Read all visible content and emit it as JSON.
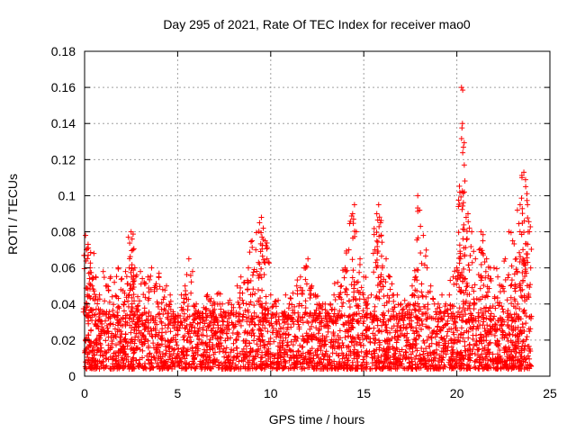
{
  "chart_data": {
    "type": "scatter",
    "title": "Day 295 of 2021, Rate Of TEC Index for receiver mao0",
    "xlabel": "GPS time / hours",
    "ylabel": "ROTI / TECUs",
    "xlim": [
      0,
      25
    ],
    "ylim": [
      0,
      0.18
    ],
    "xticks": [
      0,
      5,
      10,
      15,
      20,
      25
    ],
    "xtick_labels": [
      "0",
      "5",
      "10",
      "15",
      "20",
      "25"
    ],
    "yticks": [
      0,
      0.02,
      0.04,
      0.06,
      0.08,
      0.1,
      0.12,
      0.14,
      0.16,
      0.18
    ],
    "ytick_labels": [
      "0",
      "0.02",
      "0.04",
      "0.06",
      "0.08",
      "0.1",
      "0.12",
      "0.14",
      "0.16",
      "0.18"
    ],
    "grid": true,
    "marker": "plus",
    "color": "#ff0000",
    "series": [
      {
        "name": "ROTI",
        "x": [
          0.05,
          0.1,
          0.15,
          0.2,
          0.3,
          0.4,
          0.5,
          0.6,
          0.8,
          1.0,
          1.2,
          1.4,
          1.6,
          1.8,
          2.0,
          2.2,
          2.4,
          2.5,
          2.55,
          2.6,
          2.7,
          2.8,
          3.0,
          3.2,
          3.4,
          3.6,
          3.8,
          4.0,
          4.2,
          4.4,
          4.6,
          4.8,
          5.0,
          5.2,
          5.4,
          5.6,
          5.8,
          6.0,
          6.2,
          6.4,
          6.6,
          6.8,
          7.0,
          7.2,
          7.4,
          7.6,
          7.8,
          8.0,
          8.2,
          8.4,
          8.6,
          8.8,
          9.0,
          9.2,
          9.4,
          9.5,
          9.6,
          9.7,
          9.8,
          10.0,
          10.2,
          10.4,
          10.6,
          10.8,
          11.0,
          11.2,
          11.4,
          11.6,
          11.8,
          12.0,
          12.2,
          12.4,
          12.6,
          12.8,
          13.0,
          13.2,
          13.4,
          13.6,
          13.8,
          14.0,
          14.2,
          14.4,
          14.5,
          14.6,
          14.8,
          15.0,
          15.2,
          15.4,
          15.6,
          15.7,
          15.8,
          15.9,
          16.0,
          16.2,
          16.4,
          16.6,
          16.8,
          17.0,
          17.2,
          17.4,
          17.6,
          17.8,
          17.9,
          18.0,
          18.2,
          18.4,
          18.6,
          18.8,
          19.0,
          19.2,
          19.4,
          19.6,
          19.8,
          20.0,
          20.2,
          20.25,
          20.3,
          20.4,
          20.5,
          20.6,
          20.8,
          21.0,
          21.2,
          21.3,
          21.4,
          21.6,
          21.8,
          22.0,
          22.2,
          22.4,
          22.6,
          22.8,
          23.0,
          23.2,
          23.4,
          23.5,
          23.6,
          23.7,
          23.8,
          23.9
        ],
        "y": [
          0.078,
          0.07,
          0.045,
          0.071,
          0.06,
          0.05,
          0.068,
          0.055,
          0.045,
          0.058,
          0.05,
          0.055,
          0.052,
          0.06,
          0.054,
          0.058,
          0.06,
          0.08,
          0.076,
          0.07,
          0.06,
          0.056,
          0.058,
          0.052,
          0.055,
          0.06,
          0.05,
          0.057,
          0.048,
          0.05,
          0.045,
          0.032,
          0.03,
          0.045,
          0.05,
          0.065,
          0.058,
          0.04,
          0.035,
          0.038,
          0.045,
          0.043,
          0.04,
          0.046,
          0.04,
          0.035,
          0.042,
          0.038,
          0.05,
          0.055,
          0.052,
          0.06,
          0.075,
          0.07,
          0.085,
          0.088,
          0.082,
          0.075,
          0.065,
          0.045,
          0.04,
          0.042,
          0.035,
          0.045,
          0.04,
          0.046,
          0.05,
          0.055,
          0.06,
          0.065,
          0.05,
          0.045,
          0.04,
          0.04,
          0.035,
          0.04,
          0.045,
          0.052,
          0.05,
          0.06,
          0.07,
          0.09,
          0.095,
          0.08,
          0.065,
          0.055,
          0.04,
          0.045,
          0.07,
          0.09,
          0.095,
          0.085,
          0.06,
          0.065,
          0.055,
          0.045,
          0.045,
          0.04,
          0.042,
          0.04,
          0.05,
          0.055,
          0.1,
          0.092,
          0.078,
          0.06,
          0.05,
          0.04,
          0.04,
          0.045,
          0.04,
          0.045,
          0.055,
          0.06,
          0.065,
          0.16,
          0.14,
          0.117,
          0.088,
          0.09,
          0.08,
          0.065,
          0.07,
          0.08,
          0.075,
          0.065,
          0.06,
          0.06,
          0.055,
          0.05,
          0.065,
          0.08,
          0.075,
          0.065,
          0.095,
          0.11,
          0.113,
          0.105,
          0.095,
          0.08
        ]
      }
    ],
    "baseline_band": {
      "x_range": [
        0,
        24
      ],
      "y_range": [
        0.004,
        0.035
      ],
      "note": "dense cluster of points"
    }
  }
}
